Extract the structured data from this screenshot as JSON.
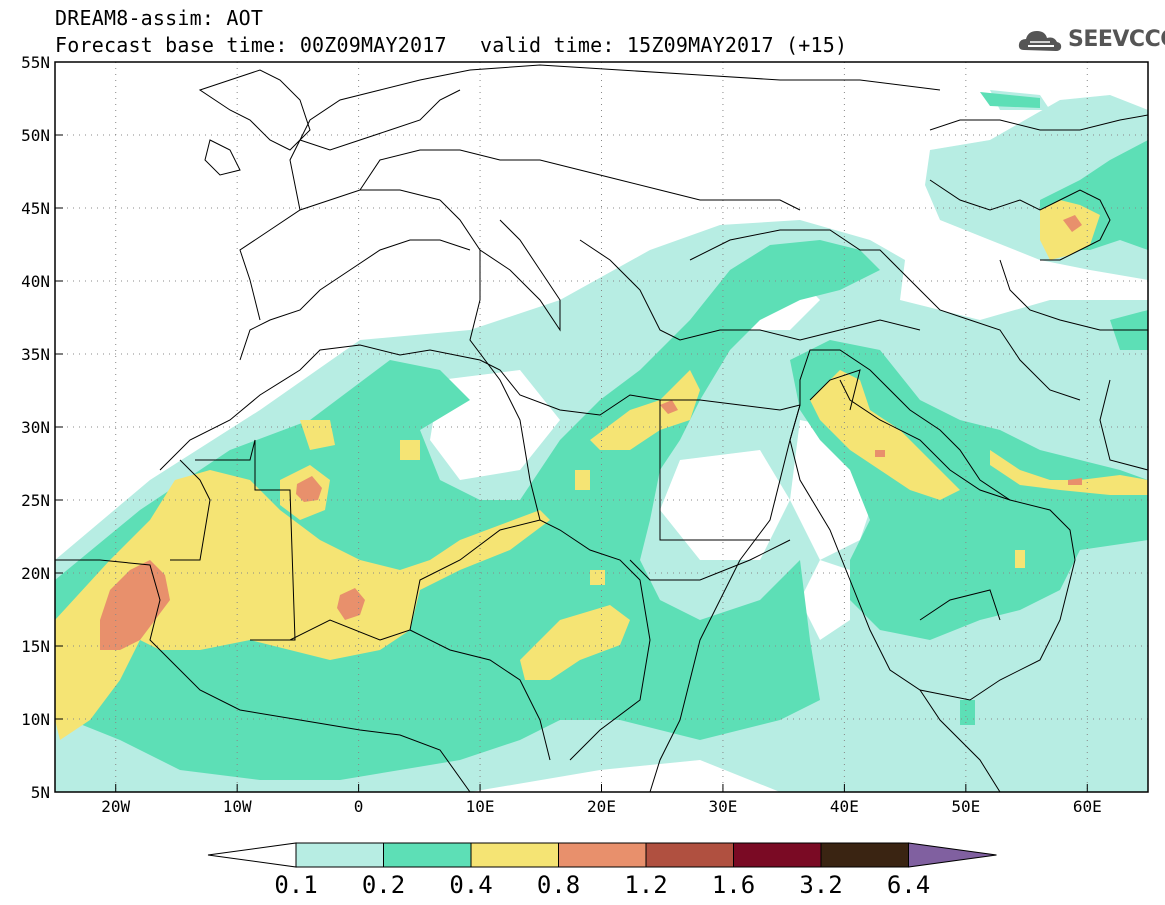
{
  "title": {
    "line1": "DREAM8-assim: AOT",
    "base_time": "Forecast base time: 00Z09MAY2017",
    "valid_time": "valid time: 15Z09MAY2017 (+15)"
  },
  "logo": {
    "text": "SEEVCCC",
    "icon": "cloud-icon"
  },
  "map": {
    "lon_range": [
      -25,
      65
    ],
    "lat_range": [
      5,
      55
    ],
    "lat_labels": [
      "55N",
      "50N",
      "45N",
      "40N",
      "35N",
      "30N",
      "25N",
      "20N",
      "15N",
      "10N",
      "5N"
    ],
    "lon_labels": [
      "20W",
      "10W",
      "0",
      "10E",
      "20E",
      "30E",
      "40E",
      "50E",
      "60E"
    ],
    "gridlines": "dotted"
  },
  "colorbar": {
    "labels": [
      "0.1",
      "0.2",
      "0.4",
      "0.8",
      "1.2",
      "1.6",
      "3.2",
      "6.4"
    ],
    "colors": [
      "#ffffff",
      "#b7ede3",
      "#5ddfb6",
      "#f5e474",
      "#e8906c",
      "#b05040",
      "#7a0a24",
      "#3a2412",
      "#8060a0"
    ]
  }
}
